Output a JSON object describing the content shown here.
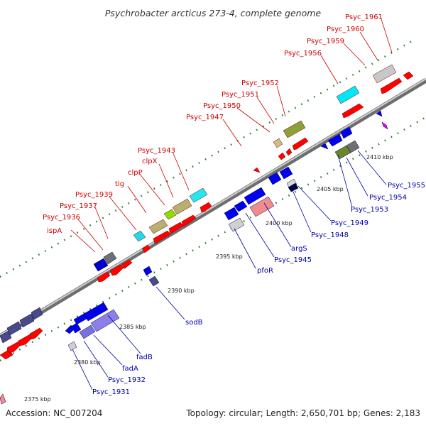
{
  "title": "Psychrobacter arcticus 273-4, complete genome",
  "footer": {
    "accession": "Accession: NC_007204",
    "topology": "Topology: circular; Length: 2,650,701 bp; Genes: 2,183"
  },
  "colors": {
    "forward_label": "#cc0000",
    "reverse_label": "#0000aa",
    "backbone": "#8a8a8a",
    "tick": "#2a7a2a"
  },
  "kbp_ticks": [
    "2375 kbp",
    "2380 kbp",
    "2385 kbp",
    "2390 kbp",
    "2395 kbp",
    "2400 kbp",
    "2405 kbp",
    "2410 kbp"
  ],
  "forward_labels": [
    "ispA",
    "Psyc_1936",
    "Psyc_1937",
    "Psyc_1939",
    "tig",
    "clpP",
    "clpX",
    "Psyc_1943",
    "Psyc_1947",
    "Psyc_1950",
    "Psyc_1951",
    "Psyc_1952",
    "Psyc_1956",
    "Psyc_1959",
    "Psyc_1960",
    "Psyc_1961"
  ],
  "reverse_labels": [
    "Psyc_1931",
    "Psyc_1932",
    "fadA",
    "fadB",
    "sodB",
    "pfoR",
    "Psyc_1945",
    "argS",
    "Psyc_1948",
    "Psyc_1949",
    "Psyc_1953",
    "Psyc_1954",
    "Psyc_1955"
  ]
}
